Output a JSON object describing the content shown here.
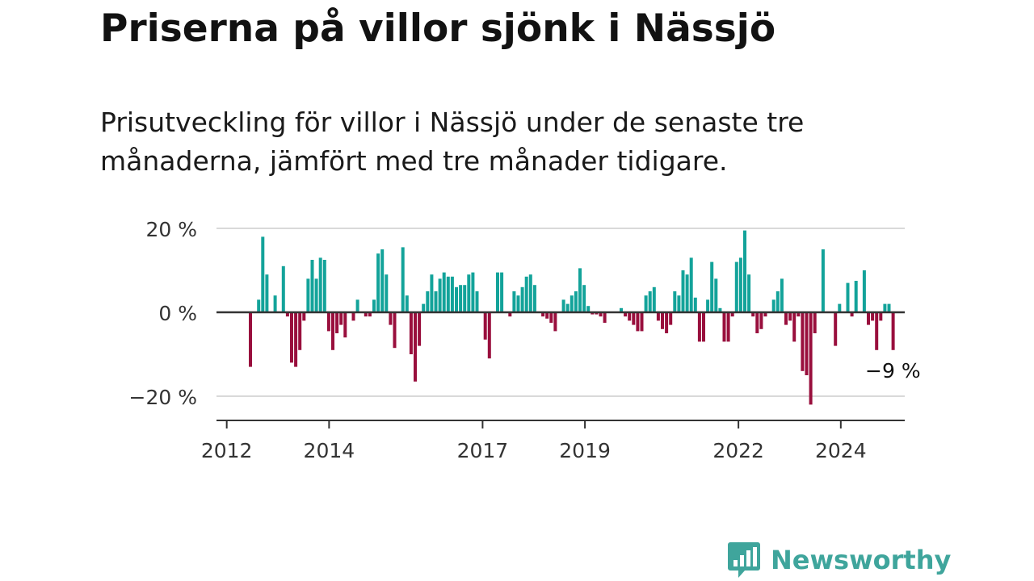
{
  "title": "Priserna på villor sjönk i Nässjö",
  "subtitle": "Prisutveckling för villor i Nässjö under de senaste tre månaderna, jämfört med tre månader tidigare.",
  "brand": {
    "name": "Newsworthy"
  },
  "colors": {
    "positive": "#13a39a",
    "negative": "#990f3d",
    "brand": "#3fa59c",
    "grid": "#d9d9d9",
    "axis": "#333333"
  },
  "chart_data": {
    "type": "bar",
    "ylim": [
      -25,
      25
    ],
    "yticks": [
      {
        "value": 20,
        "label": "20 %"
      },
      {
        "value": 0,
        "label": "0 %"
      },
      {
        "value": -20,
        "label": "−20 %"
      }
    ],
    "xlim": [
      2011.8,
      2025.25
    ],
    "xticks": [
      {
        "value": 2012.0,
        "label": "2012"
      },
      {
        "value": 2014.0,
        "label": "2014"
      },
      {
        "value": 2017.0,
        "label": "2017"
      },
      {
        "value": 2019.0,
        "label": "2019"
      },
      {
        "value": 2022.0,
        "label": "2022"
      },
      {
        "value": 2024.0,
        "label": "2024"
      }
    ],
    "start": "2012-01",
    "values": [
      -13,
      0,
      3,
      18,
      9,
      0,
      4,
      0,
      11,
      -1,
      -12,
      -13,
      -9,
      -2,
      8,
      12.5,
      8,
      13,
      12.5,
      -4.5,
      -9,
      -5,
      -3,
      -6,
      0,
      -2,
      3,
      0,
      -1,
      -1,
      3,
      14,
      15,
      9,
      -3,
      -8.5,
      0,
      15.5,
      4,
      -10,
      -16.5,
      -8,
      2,
      5,
      9,
      5,
      8,
      9.5,
      8.5,
      8.5,
      6,
      6.5,
      6.5,
      9,
      9.5,
      5,
      0,
      -6.5,
      -11,
      0,
      9.5,
      9.5,
      0,
      -1,
      5,
      4,
      6,
      8.5,
      9,
      6.5,
      0,
      -1,
      -1.5,
      -2.5,
      -4.5,
      0,
      3,
      2,
      4,
      5,
      10.5,
      6.5,
      1.5,
      -0.5,
      -0.5,
      -1,
      -2.5,
      0,
      0,
      0,
      1,
      -1,
      -2,
      -3,
      -4.5,
      -4.5,
      4,
      5,
      6,
      -2,
      -4,
      -5,
      -3,
      5,
      4,
      10,
      9,
      13,
      3.5,
      -7,
      -7,
      3,
      12,
      8,
      1,
      -7,
      -7,
      -1,
      12,
      13,
      19.5,
      9,
      -1,
      -5,
      -4,
      -1,
      0,
      3,
      5,
      8,
      -3,
      -2,
      -7,
      -1,
      -14,
      -15,
      -22,
      -5,
      0,
      15,
      0,
      0,
      -8,
      2,
      0,
      7,
      -1,
      7.5,
      0,
      10,
      -3,
      -2,
      -9,
      -2,
      2,
      2,
      -9
    ],
    "annotation": {
      "text": "−9 %"
    }
  }
}
